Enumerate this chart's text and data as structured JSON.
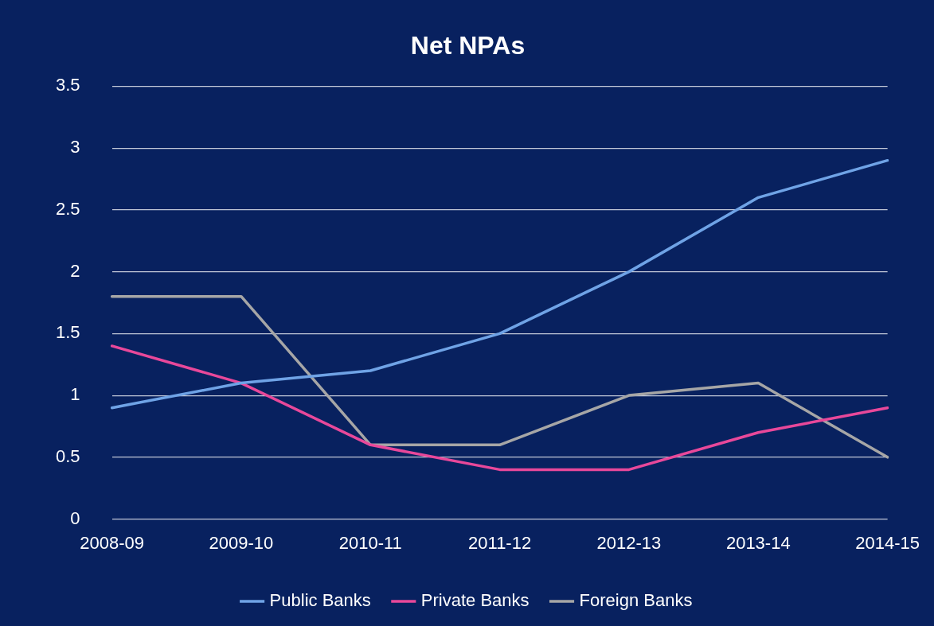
{
  "chart_data": {
    "type": "line",
    "title": "Net NPAs",
    "categories": [
      "2008-09",
      "2009-10",
      "2010-11",
      "2011-12",
      "2012-13",
      "2013-14",
      "2014-15"
    ],
    "series": [
      {
        "name": "Public Banks",
        "color": "#6fa3e6",
        "values": [
          0.9,
          1.1,
          1.2,
          1.5,
          2.0,
          2.6,
          2.9
        ]
      },
      {
        "name": "Private Banks",
        "color": "#e8489a",
        "values": [
          1.4,
          1.1,
          0.6,
          0.4,
          0.4,
          0.7,
          0.9
        ]
      },
      {
        "name": "Foreign Banks",
        "color": "#a6a6a6",
        "values": [
          1.8,
          1.8,
          0.6,
          0.6,
          1.0,
          1.1,
          0.5
        ]
      }
    ],
    "ylim": [
      0,
      3.5
    ],
    "yticks": [
      0,
      0.5,
      1,
      1.5,
      2,
      2.5,
      3,
      3.5
    ],
    "grid": "y",
    "legend": "bottom",
    "marker": "none",
    "line_style": "solid"
  }
}
